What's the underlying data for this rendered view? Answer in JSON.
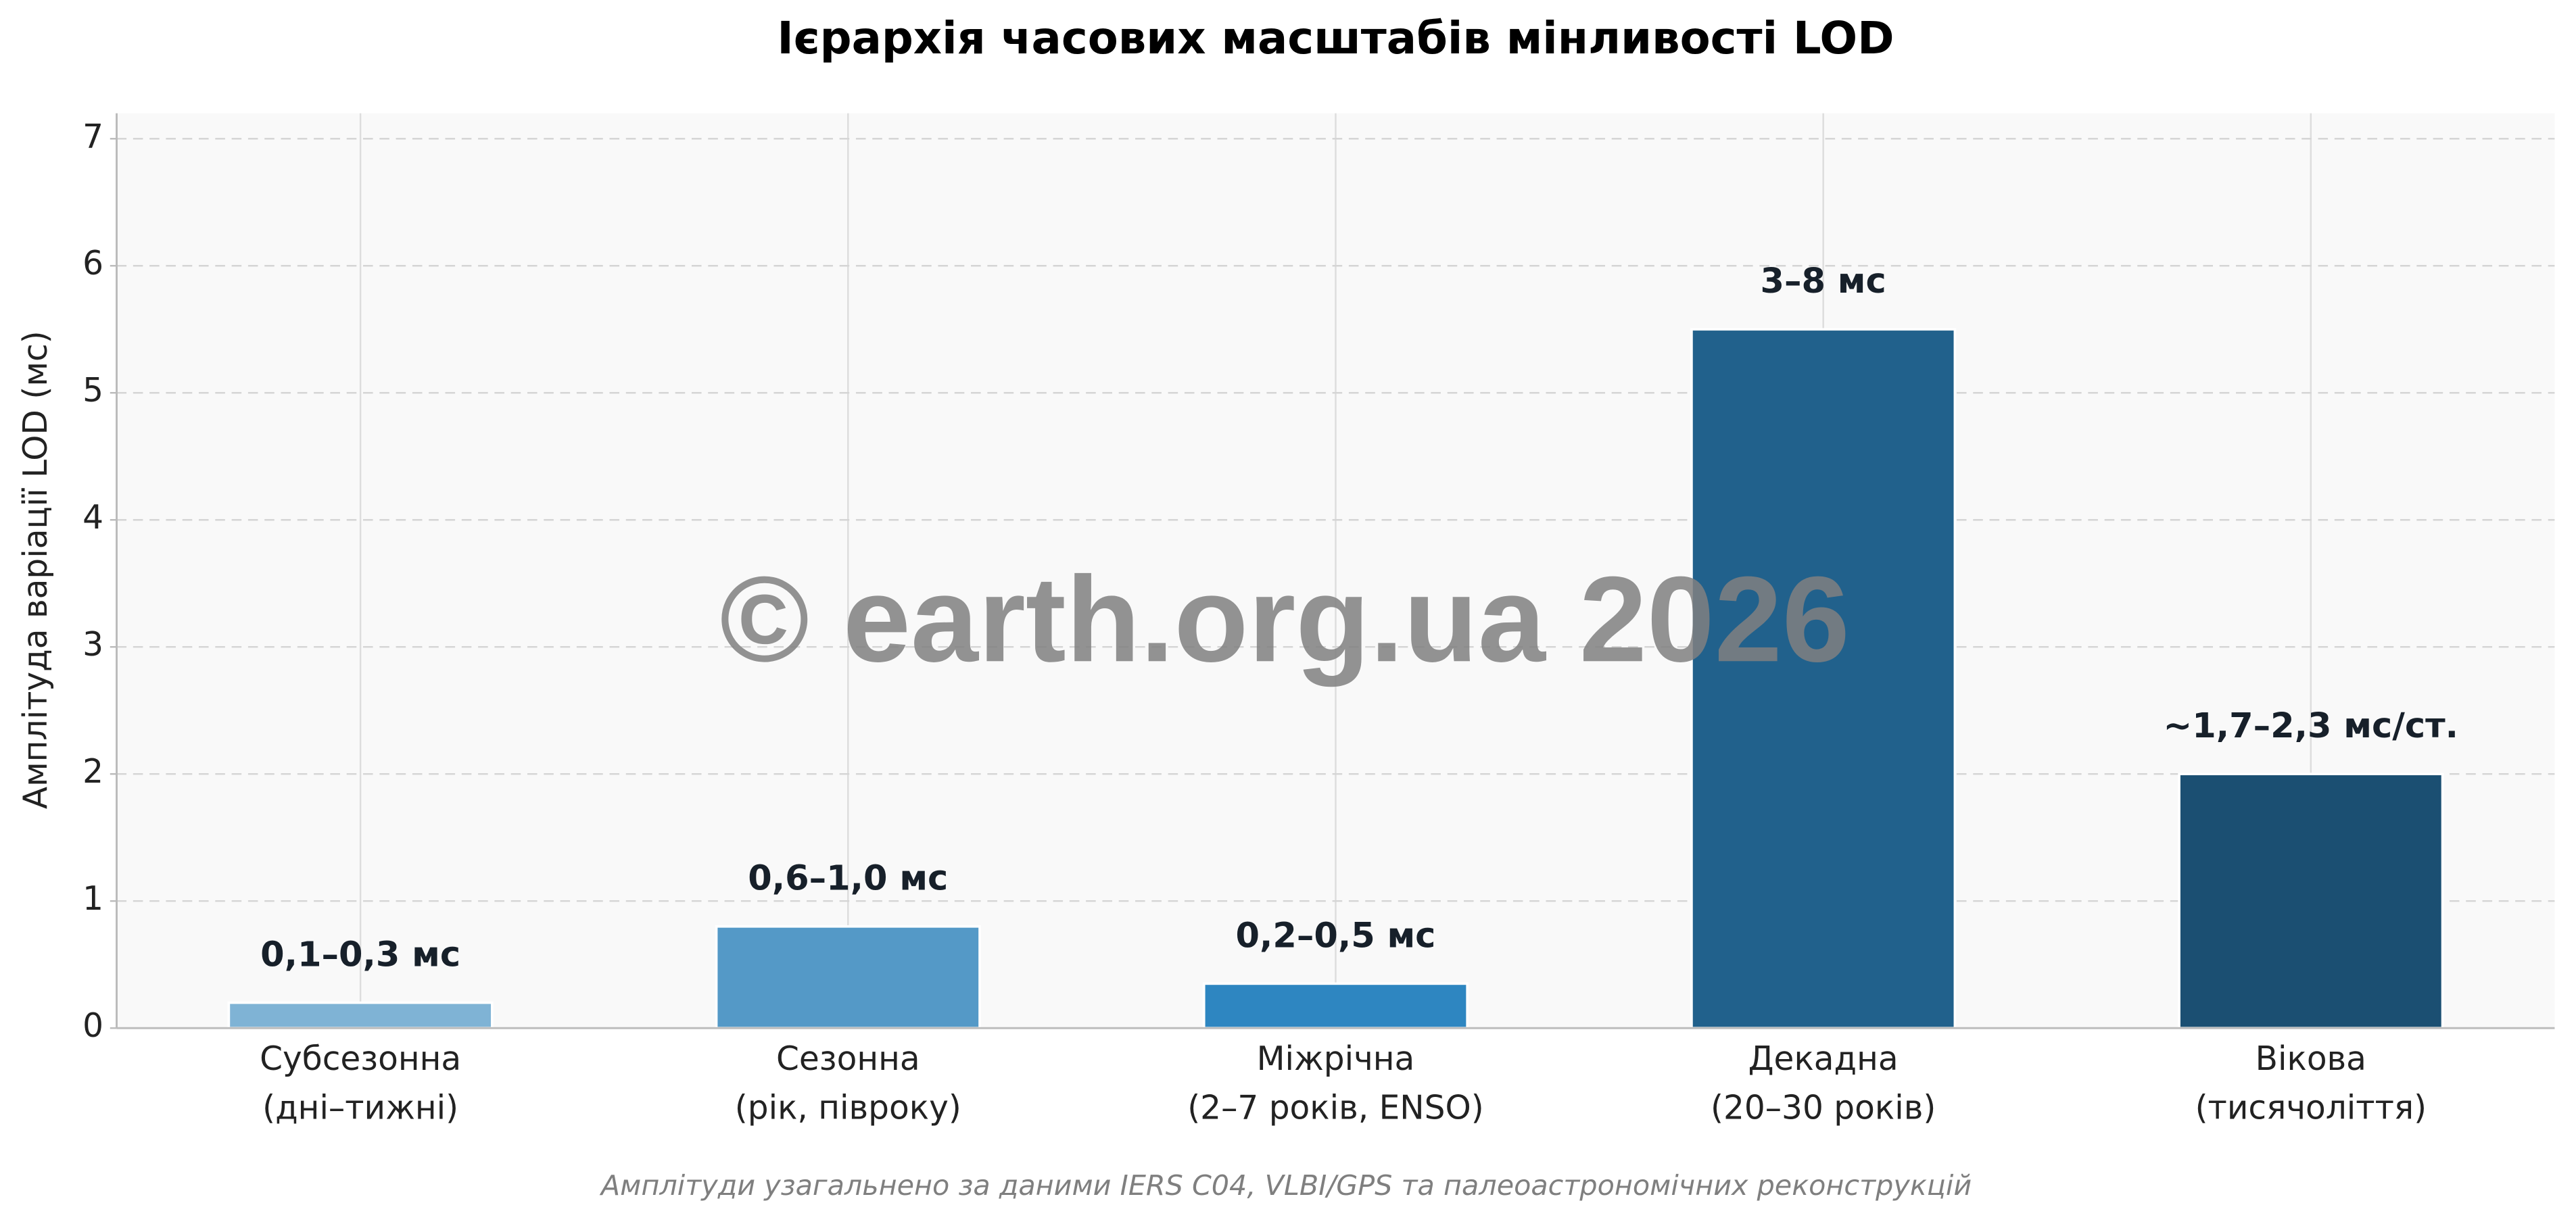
{
  "chart_data": {
    "type": "bar",
    "title": "Ієрархія часових масштабів мінливості LOD",
    "y_label": "Амплітуда варіації LOD (мс)",
    "categories": [
      [
        "Субсезонна",
        "(дні–тижні)"
      ],
      [
        "Сезонна",
        "(рік, півроку)"
      ],
      [
        "Міжрічна",
        "(2–7 років, ENSO)"
      ],
      [
        "Декадна",
        "(20–30 років)"
      ],
      [
        "Вікова",
        "(тисячоліття)"
      ]
    ],
    "values": [
      0.2,
      0.8,
      0.35,
      5.5,
      2.0
    ],
    "value_labels": [
      "0,1–0,3 мс",
      "0,6–1,0 мс",
      "0,2–0,5 мс",
      "3–8 мс",
      "~1,7–2,3 мс/ст."
    ],
    "colors": [
      "#7fb3d5",
      "#5499c7",
      "#2e86c1",
      "#21618c",
      "#1b4f72"
    ],
    "ylim": [
      0,
      7.2
    ],
    "yticks": [
      0,
      1,
      2,
      3,
      4,
      5,
      6,
      7
    ],
    "grid": true,
    "watermark": "© earth.org.ua 2026",
    "footnote": "Амплітуди узагальнено за даними IERS C04, VLBI/GPS та палеоастрономічних реконструкцій"
  }
}
